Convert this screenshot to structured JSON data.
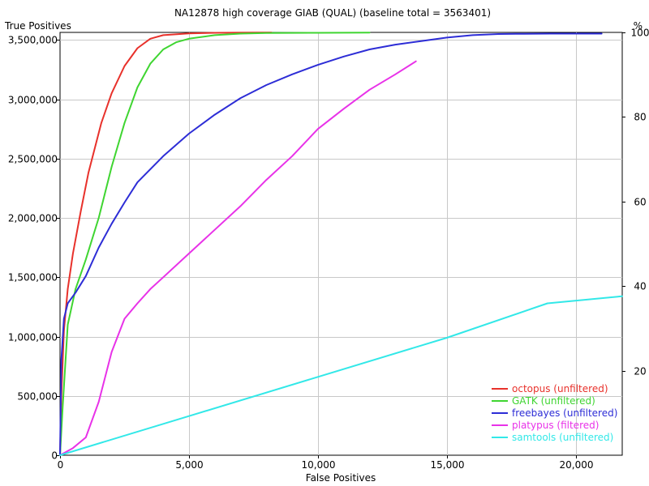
{
  "chart_data": {
    "type": "line",
    "title": "NA12878 high coverage GIAB (QUAL) (baseline total = 3563401)",
    "xlabel": "False Positives",
    "ylabel": "True Positives",
    "y2label": "%",
    "xlim": [
      0,
      21800
    ],
    "ylim": [
      0,
      3563401
    ],
    "x_ticks": [
      0,
      5000,
      10000,
      15000,
      20000
    ],
    "x_tick_labels": [
      "0",
      "5,000",
      "10,000",
      "15,000",
      "20,000"
    ],
    "y_ticks": [
      0,
      500000,
      1000000,
      1500000,
      2000000,
      2500000,
      3000000,
      3500000
    ],
    "y_tick_labels": [
      "0",
      "500,000",
      "1,000,000",
      "1,500,000",
      "2,000,000",
      "2,500,000",
      "3,000,000",
      "3,500,000"
    ],
    "y2_ticks": [
      20,
      40,
      60,
      80,
      100
    ],
    "y2_tick_labels": [
      "20",
      "40",
      "60",
      "80",
      "100"
    ],
    "grid": true,
    "legend_position": "bottom-right",
    "series": [
      {
        "name": "octopus (unfiltered)",
        "color": "#e8312b",
        "x": [
          0,
          50,
          150,
          300,
          500,
          800,
          1100,
          1600,
          2000,
          2500,
          3000,
          3500,
          4000,
          5000,
          6000,
          7000,
          8200
        ],
        "y": [
          0,
          500000,
          1050000,
          1400000,
          1700000,
          2050000,
          2380000,
          2800000,
          3050000,
          3280000,
          3430000,
          3510000,
          3540000,
          3555000,
          3560000,
          3562000,
          3563000
        ]
      },
      {
        "name": "GATK (unfiltered)",
        "color": "#3fd531",
        "x": [
          0,
          100,
          300,
          600,
          1000,
          1500,
          2000,
          2500,
          3000,
          3500,
          4000,
          4500,
          5000,
          6000,
          7000,
          8000,
          10000,
          12000
        ],
        "y": [
          0,
          400000,
          1100000,
          1400000,
          1650000,
          2000000,
          2430000,
          2800000,
          3100000,
          3300000,
          3420000,
          3480000,
          3510000,
          3540000,
          3553000,
          3558000,
          3560000,
          3562000
        ]
      },
      {
        "name": "freebayes (unfiltered)",
        "color": "#2d2dd6",
        "x": [
          0,
          50,
          150,
          300,
          600,
          1000,
          1500,
          2000,
          2500,
          3000,
          4000,
          5000,
          6000,
          7000,
          8000,
          9000,
          10000,
          11000,
          12000,
          13000,
          14000,
          15000,
          16000,
          17000,
          18000,
          19000,
          20000,
          21000
        ],
        "y": [
          0,
          800000,
          1150000,
          1280000,
          1370000,
          1510000,
          1750000,
          1950000,
          2130000,
          2300000,
          2520000,
          2710000,
          2870000,
          3010000,
          3120000,
          3210000,
          3290000,
          3360000,
          3420000,
          3460000,
          3490000,
          3520000,
          3540000,
          3550000,
          3552000,
          3553000,
          3553000,
          3553000
        ]
      },
      {
        "name": "platypus (filtered)",
        "color": "#e832e8",
        "x": [
          0,
          500,
          1000,
          1500,
          2000,
          2500,
          3000,
          3500,
          4000,
          5000,
          6000,
          7000,
          8000,
          9000,
          10000,
          11000,
          12000,
          13000,
          13800
        ],
        "y": [
          0,
          60000,
          150000,
          450000,
          870000,
          1150000,
          1280000,
          1400000,
          1500000,
          1700000,
          1900000,
          2100000,
          2320000,
          2520000,
          2750000,
          2920000,
          3080000,
          3210000,
          3320000
        ]
      },
      {
        "name": "samtools (unfiltered)",
        "color": "#32e8e8",
        "x": [
          0,
          5000,
          10000,
          15000,
          18900,
          21800
        ],
        "y": [
          0,
          330000,
          660000,
          990000,
          1280000,
          1340000
        ]
      }
    ]
  }
}
